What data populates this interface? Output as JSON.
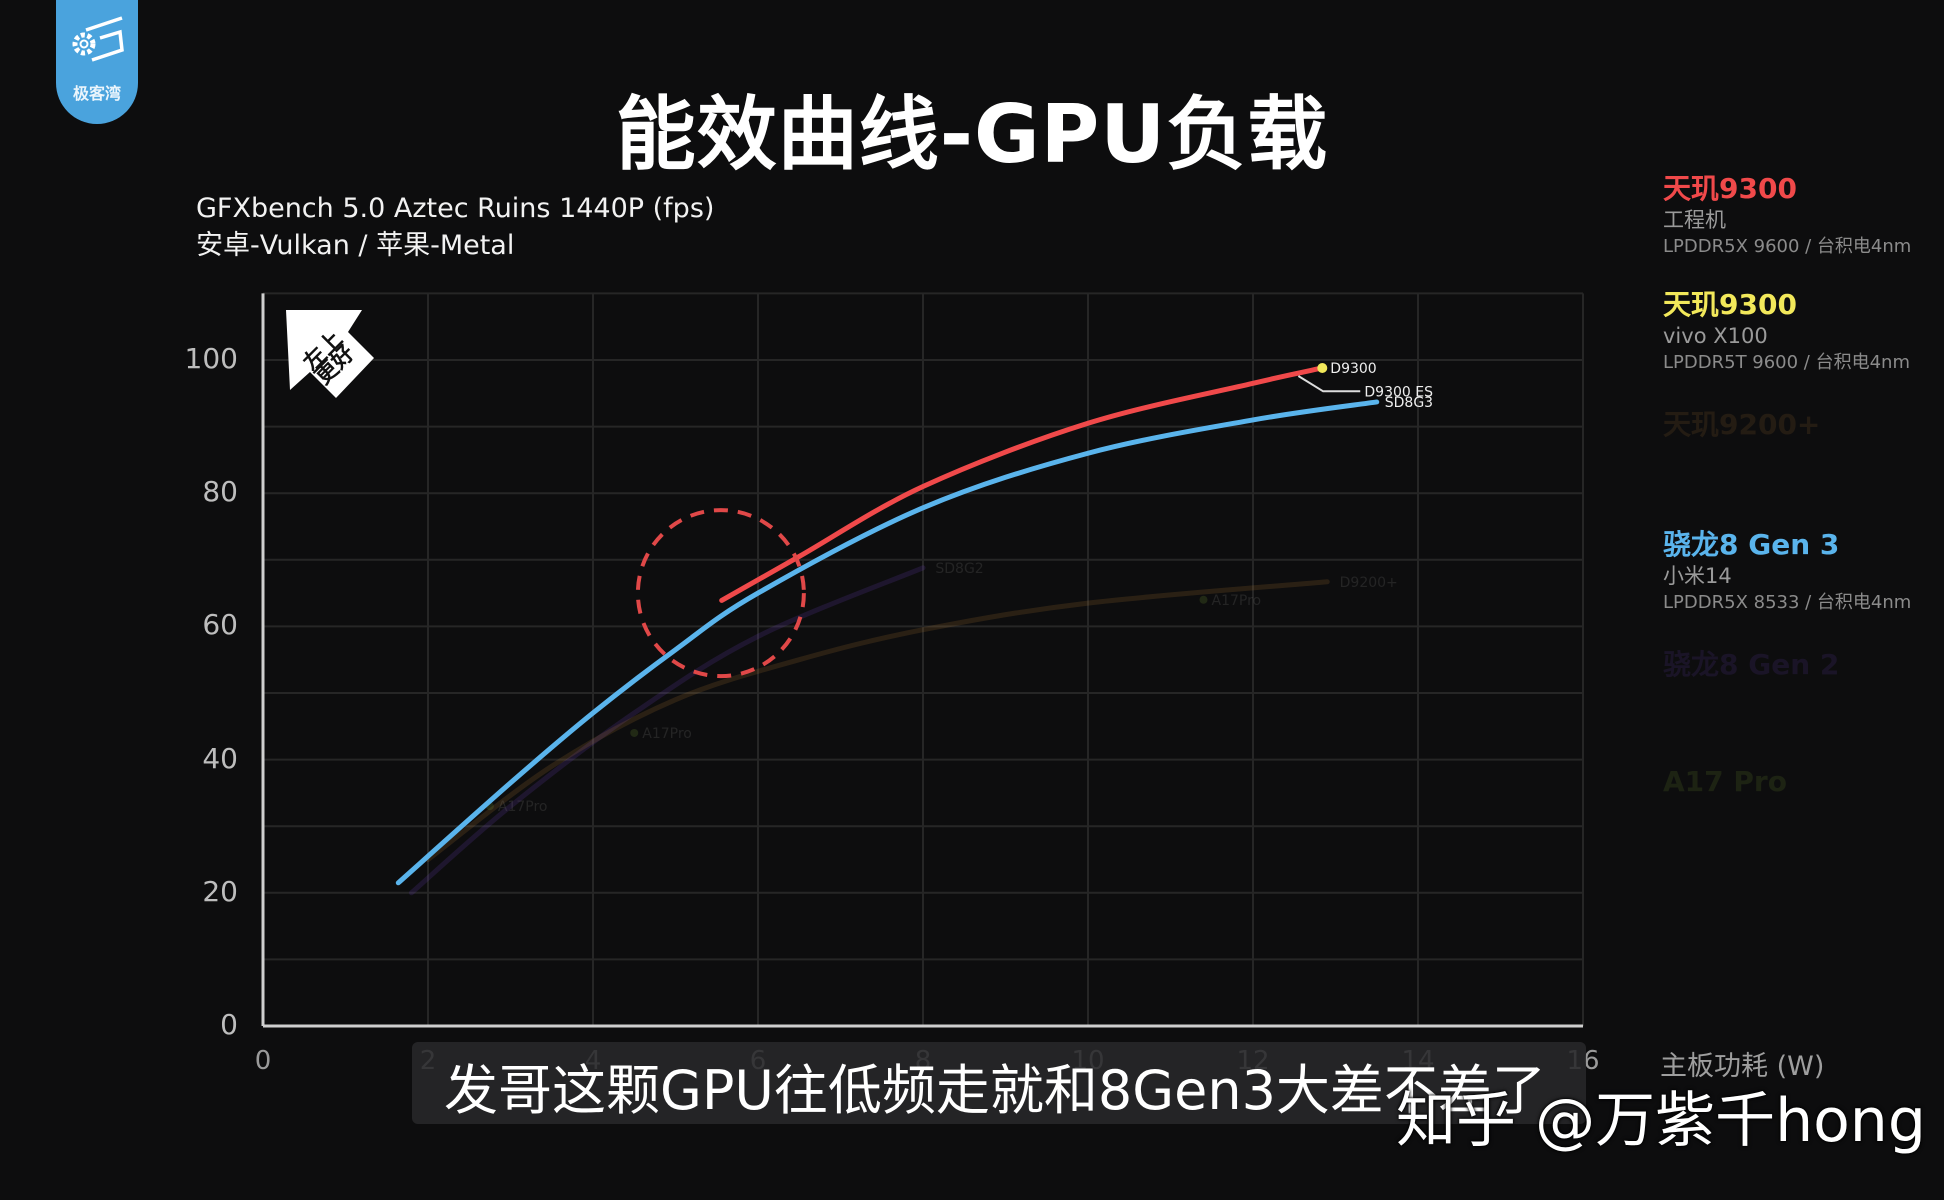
{
  "logo": {
    "icon": "gear-monitor-icon",
    "text": "极客湾",
    "color": "#4aa3dd"
  },
  "header": {
    "title": "能效曲线-GPU负载",
    "subtitle_line1": "GFXbench 5.0 Aztec Ruins 1440P (fps)",
    "subtitle_line2": "安卓-Vulkan / 苹果-Metal"
  },
  "badge": {
    "text_line1": "左上",
    "text_line2": "更好",
    "icon": "arrow-up-left-icon"
  },
  "legend": [
    {
      "name": "天玑9300",
      "device": "工程机",
      "spec": "LPDDR5X 9600 / 台积电4nm",
      "color": "#f0494a",
      "faded": false
    },
    {
      "name": "天玑9300",
      "device": "vivo X100",
      "spec": "LPDDR5T 9600 / 台积电4nm",
      "color": "#f2e85a",
      "faded": false
    },
    {
      "name": "天玑9200+",
      "device": "",
      "spec": "",
      "color": "#c8873a",
      "faded": true
    },
    {
      "name": "骁龙8 Gen 3",
      "device": "小米14",
      "spec": "LPDDR5X 8533 / 台积电4nm",
      "color": "#5ab4ec",
      "faded": false
    },
    {
      "name": "骁龙8 Gen 2",
      "device": "",
      "spec": "",
      "color": "#7a4ad8",
      "faded": true
    },
    {
      "name": "A17 Pro",
      "device": "",
      "spec": "",
      "color": "#8ec23c",
      "faded": true
    }
  ],
  "caption": {
    "text": "发哥这颗GPU往低频走就和8Gen3大差不差了"
  },
  "watermark": {
    "text": "知乎 @万紫千hong"
  },
  "chart_data": {
    "type": "line",
    "title": "能效曲线-GPU负载",
    "subtitle": "GFXbench 5.0 Aztec Ruins 1440P (fps) 安卓-Vulkan / 苹果-Metal",
    "xlabel": "主板功耗 (W)",
    "ylabel": "fps",
    "xlim": [
      0,
      16
    ],
    "ylim": [
      0,
      110
    ],
    "xticks": [
      0,
      2,
      4,
      6,
      8,
      10,
      12,
      14,
      16
    ],
    "yticks": [
      0,
      20,
      40,
      60,
      80,
      100
    ],
    "grid": true,
    "legend_position": "right",
    "series": [
      {
        "name": "天玑9300 工程机",
        "label": "D9300 ES",
        "color": "#f0494a",
        "x": [
          5.56,
          6.5,
          8.0,
          10.0,
          12.0,
          12.84
        ],
        "y": [
          63.9,
          70.5,
          81.0,
          90.5,
          96.5,
          98.8
        ]
      },
      {
        "name": "天玑9300 vivo X100",
        "label": "D9300",
        "color": "#f2e85a",
        "x": [
          12.84
        ],
        "y": [
          98.8
        ]
      },
      {
        "name": "骁龙8 Gen 3 小米14",
        "label": "SD8G3",
        "color": "#5ab4ec",
        "x": [
          1.64,
          3.0,
          4.0,
          5.0,
          6.0,
          8.0,
          10.0,
          12.0,
          13.5
        ],
        "y": [
          21.5,
          36.5,
          47.0,
          56.5,
          65.0,
          77.8,
          86.0,
          91.0,
          93.7
        ]
      },
      {
        "name": "骁龙8 Gen 2",
        "label": "SD8G2",
        "color": "#7a4ad8",
        "faded": true,
        "x": [
          1.8,
          3.0,
          4.5,
          6.0,
          8.0
        ],
        "y": [
          20.0,
          33.0,
          47.0,
          58.5,
          68.8
        ]
      },
      {
        "name": "天玑9200+",
        "label": "D9200+",
        "color": "#c8873a",
        "faded": true,
        "x": [
          2.0,
          3.5,
          5.0,
          6.5,
          8.0,
          10.0,
          12.9
        ],
        "y": [
          25.0,
          39.0,
          49.0,
          55.0,
          59.5,
          63.5,
          66.7
        ]
      },
      {
        "name": "A17 Pro",
        "label": "A17Pro",
        "color": "#8ec23c",
        "faded": true,
        "x": [
          2.75,
          4.5,
          11.4
        ],
        "y": [
          33.0,
          44.0,
          64.0
        ]
      }
    ],
    "annotations": [
      {
        "type": "dashed-circle",
        "center": [
          5.55,
          65.0
        ],
        "note": "highlights low-frequency region where D9300 ES meets SD8G3",
        "color": "#e04848"
      },
      {
        "type": "badge",
        "text": "左上更好"
      }
    ]
  }
}
